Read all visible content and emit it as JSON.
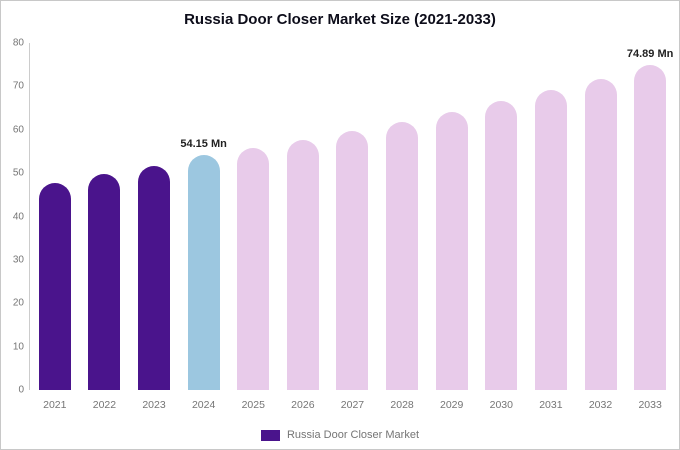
{
  "title": "Russia Door Closer Market Size (2021-2033)",
  "legend": {
    "label": "Russia Door Closer Market",
    "swatch_color": "#4a148c"
  },
  "chart_data": {
    "type": "bar",
    "title": "Russia Door Closer Market Size (2021-2033)",
    "xlabel": "",
    "ylabel": "",
    "categories": [
      "2021",
      "2022",
      "2023",
      "2024",
      "2025",
      "2026",
      "2027",
      "2028",
      "2029",
      "2030",
      "2031",
      "2032",
      "2033"
    ],
    "values": [
      47.7,
      49.9,
      51.7,
      54.15,
      55.7,
      57.6,
      59.7,
      61.9,
      64.2,
      66.6,
      69.1,
      71.8,
      74.89
    ],
    "bar_color_roles": [
      "past",
      "past",
      "past",
      "current",
      "forecast",
      "forecast",
      "forecast",
      "forecast",
      "forecast",
      "forecast",
      "forecast",
      "forecast",
      "forecast"
    ],
    "colors": {
      "past": "#4a148c",
      "current": "#9cc7e0",
      "forecast": "#e8cbea"
    },
    "data_labels": {
      "3": "54.15 Mn",
      "12": "74.89 Mn"
    },
    "ylim": [
      0,
      80
    ],
    "yticks": [
      0,
      10,
      20,
      30,
      40,
      50,
      60,
      70,
      80
    ],
    "grid": false,
    "legend_position": "bottom"
  }
}
